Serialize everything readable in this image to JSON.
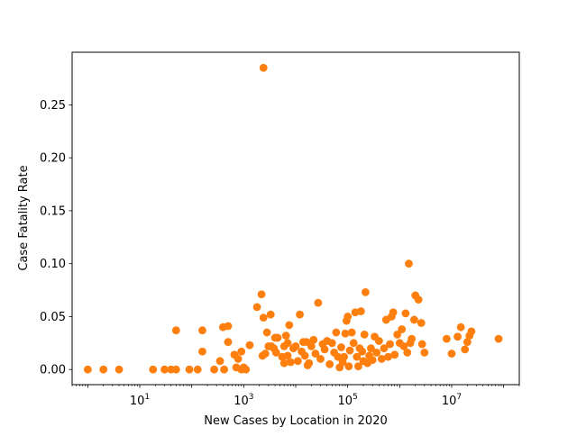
{
  "chart_data": {
    "type": "scatter",
    "title": "",
    "xlabel": "New Cases by Location in 2020",
    "ylabel": "Case Fatality Rate",
    "x_scale": "log",
    "xlim": [
      0.5,
      200000000
    ],
    "ylim": [
      -0.0143,
      0.2997
    ],
    "grid": false,
    "marker_color": "#ff7f0e",
    "x_ticks": [
      {
        "value": 10,
        "base": "10",
        "exp": "1"
      },
      {
        "value": 1000,
        "base": "10",
        "exp": "3"
      },
      {
        "value": 100000,
        "base": "10",
        "exp": "5"
      },
      {
        "value": 10000000,
        "base": "10",
        "exp": "7"
      }
    ],
    "y_ticks": [
      {
        "value": 0.0,
        "label": "0.00"
      },
      {
        "value": 0.05,
        "label": "0.05"
      },
      {
        "value": 0.1,
        "label": "0.10"
      },
      {
        "value": 0.15,
        "label": "0.15"
      },
      {
        "value": 0.2,
        "label": "0.20"
      },
      {
        "value": 0.25,
        "label": "0.25"
      }
    ],
    "points": [
      [
        1,
        0
      ],
      [
        2,
        0
      ],
      [
        4,
        0
      ],
      [
        18,
        0
      ],
      [
        30,
        0
      ],
      [
        40,
        0
      ],
      [
        50,
        0
      ],
      [
        90,
        0
      ],
      [
        130,
        0
      ],
      [
        270,
        0
      ],
      [
        420,
        0
      ],
      [
        900,
        0
      ],
      [
        1100,
        0
      ],
      [
        720,
        0.002
      ],
      [
        1000,
        0.002
      ],
      [
        780,
        0.01
      ],
      [
        660,
        0.014
      ],
      [
        350,
        0.008
      ],
      [
        50,
        0.037
      ],
      [
        160,
        0.037
      ],
      [
        160,
        0.017
      ],
      [
        400,
        0.04
      ],
      [
        500,
        0.041
      ],
      [
        500,
        0.026
      ],
      [
        900,
        0.017
      ],
      [
        1300,
        0.023
      ],
      [
        1800,
        0.059
      ],
      [
        2200,
        0.071
      ],
      [
        2400,
        0.049
      ],
      [
        3300,
        0.052
      ],
      [
        2800,
        0.035
      ],
      [
        2300,
        0.013
      ],
      [
        2600,
        0.015
      ],
      [
        3000,
        0.022
      ],
      [
        3800,
        0.02
      ],
      [
        4000,
        0.03
      ],
      [
        4500,
        0.03
      ],
      [
        3400,
        0.022
      ],
      [
        4200,
        0.016
      ],
      [
        5500,
        0.012
      ],
      [
        6000,
        0.022
      ],
      [
        6500,
        0.032
      ],
      [
        7000,
        0.025
      ],
      [
        7500,
        0.042
      ],
      [
        7000,
        0.013
      ],
      [
        6000,
        0.006
      ],
      [
        8000,
        0.007
      ],
      [
        9000,
        0.02
      ],
      [
        10000,
        0.022
      ],
      [
        11000,
        0.008
      ],
      [
        12000,
        0.052
      ],
      [
        13000,
        0.017
      ],
      [
        14000,
        0.026
      ],
      [
        15000,
        0.013
      ],
      [
        16000,
        0.026
      ],
      [
        17000,
        0.004
      ],
      [
        18000,
        0.006
      ],
      [
        20000,
        0.022
      ],
      [
        22000,
        0.028
      ],
      [
        24000,
        0.015
      ],
      [
        27000,
        0.063
      ],
      [
        30000,
        0.01
      ],
      [
        33000,
        0.024
      ],
      [
        36000,
        0.019
      ],
      [
        40000,
        0.027
      ],
      [
        45000,
        0.005
      ],
      [
        50000,
        0.025
      ],
      [
        55000,
        0.016
      ],
      [
        60000,
        0.035
      ],
      [
        65000,
        0.012
      ],
      [
        70000,
        0.002
      ],
      [
        75000,
        0.021
      ],
      [
        80000,
        0.007
      ],
      [
        85000,
        0.012
      ],
      [
        90000,
        0.034
      ],
      [
        95000,
        0.046
      ],
      [
        100000,
        0.05
      ],
      [
        105000,
        0.003
      ],
      [
        110000,
        0.018
      ],
      [
        120000,
        0.035
      ],
      [
        130000,
        0.025
      ],
      [
        140000,
        0.054
      ],
      [
        150000,
        0.012
      ],
      [
        160000,
        0.003
      ],
      [
        170000,
        0.02
      ],
      [
        180000,
        0.055
      ],
      [
        190000,
        0.017
      ],
      [
        200000,
        0.008
      ],
      [
        210000,
        0.033
      ],
      [
        220000,
        0.073
      ],
      [
        240000,
        0.006
      ],
      [
        260000,
        0.013
      ],
      [
        280000,
        0.02
      ],
      [
        300000,
        0.009
      ],
      [
        330000,
        0.031
      ],
      [
        360000,
        0.016
      ],
      [
        400000,
        0.027
      ],
      [
        450000,
        0.01
      ],
      [
        500000,
        0.02
      ],
      [
        550000,
        0.047
      ],
      [
        600000,
        0.012
      ],
      [
        650000,
        0.024
      ],
      [
        700000,
        0.05
      ],
      [
        750000,
        0.054
      ],
      [
        800000,
        0.014
      ],
      [
        900000,
        0.033
      ],
      [
        1000000,
        0.025
      ],
      [
        1100000,
        0.038
      ],
      [
        1200000,
        0.022
      ],
      [
        1300000,
        0.053
      ],
      [
        1400000,
        0.016
      ],
      [
        1500000,
        0.1
      ],
      [
        1600000,
        0.025
      ],
      [
        1700000,
        0.029
      ],
      [
        1900000,
        0.047
      ],
      [
        2000000,
        0.07
      ],
      [
        2300000,
        0.066
      ],
      [
        2600000,
        0.044
      ],
      [
        2700000,
        0.024
      ],
      [
        3000000,
        0.016
      ],
      [
        8000000,
        0.029
      ],
      [
        10000000,
        0.015
      ],
      [
        13000000,
        0.031
      ],
      [
        15000000,
        0.04
      ],
      [
        18000000,
        0.019
      ],
      [
        20000000,
        0.026
      ],
      [
        22000000,
        0.032
      ],
      [
        24000000,
        0.036
      ],
      [
        80000000,
        0.029
      ],
      [
        2400,
        0.285
      ]
    ]
  }
}
